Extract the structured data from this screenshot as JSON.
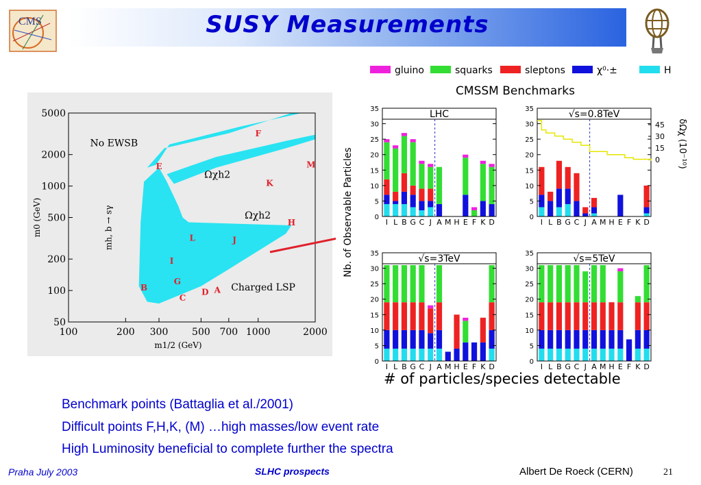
{
  "slide": {
    "title": "SUSY Measurements",
    "bullets": [
      "Benchmark points  (Battaglia et al./2001)",
      "Difficult points F,H,K, (M) …high masses/low event rate",
      "High Luminosity beneficial to complete further the spectra"
    ],
    "caption": "# of particles/species detectable",
    "footer_left": "Praha July 2003",
    "footer_center": "SLHC prospects",
    "footer_right": "Albert De Roeck (CERN)",
    "page_number": "21",
    "cms_logo_text": "CMS",
    "colors": {
      "title": "#0000cc",
      "bullet": "#0000cc",
      "arrow": "#e0202a",
      "band": "#29e3f2"
    }
  },
  "chart_data": [
    {
      "type": "scatter",
      "xscale": "log",
      "yscale": "log",
      "xlabel": "m1/2 (GeV)",
      "ylabel": "m0 (GeV)",
      "xlim": [
        100,
        2000
      ],
      "ylim": [
        50,
        5000
      ],
      "xticks": [
        "100",
        "200",
        "300",
        "500",
        "700",
        "1000",
        "2000"
      ],
      "yticks": [
        "5000",
        "2000",
        "1000",
        "500",
        "200",
        "100",
        "50"
      ],
      "regions": [
        "No EWSB",
        "Ωχh2",
        "Ωχh2",
        "Charged LSP",
        "mh, b → sγ"
      ],
      "points": [
        {
          "label": "A",
          "x": 610,
          "y": 95
        },
        {
          "label": "B",
          "x": 250,
          "y": 100
        },
        {
          "label": "C",
          "x": 400,
          "y": 80
        },
        {
          "label": "D",
          "x": 525,
          "y": 91
        },
        {
          "label": "E",
          "x": 300,
          "y": 1450
        },
        {
          "label": "F",
          "x": 1000,
          "y": 3000
        },
        {
          "label": "G",
          "x": 375,
          "y": 115
        },
        {
          "label": "H",
          "x": 1500,
          "y": 419
        },
        {
          "label": "I",
          "x": 350,
          "y": 180
        },
        {
          "label": "J",
          "x": 750,
          "y": 285
        },
        {
          "label": "K",
          "x": 1150,
          "y": 1000
        },
        {
          "label": "L",
          "x": 450,
          "y": 300
        },
        {
          "label": "M",
          "x": 1900,
          "y": 1500
        }
      ]
    },
    {
      "type": "bar",
      "stacked": true,
      "title": "CMSSM Benchmarks",
      "ylabel": "Nb. of Observable Particles",
      "categories": [
        "I",
        "L",
        "B",
        "G",
        "C",
        "J",
        "A",
        "M",
        "H",
        "E",
        "F",
        "K",
        "D"
      ],
      "ylim": [
        0,
        35
      ],
      "yticks": [
        "0",
        "5",
        "10",
        "15",
        "20",
        "25",
        "30",
        "35"
      ],
      "legend": {
        "placement": "top",
        "items": [
          {
            "name": "gluino",
            "color": "#ee22dd"
          },
          {
            "name": "squarks",
            "color": "#33dd33"
          },
          {
            "name": "sleptons",
            "color": "#ee2222"
          },
          {
            "name": "χ⁰·±",
            "color": "#1111dd"
          },
          {
            "name": "H",
            "color": "#22ddee"
          }
        ]
      },
      "panels": [
        {
          "name": "LHC",
          "series": [
            {
              "name": "H",
              "values": [
                4,
                4,
                4,
                3,
                2,
                3,
                0,
                0,
                0,
                0,
                0,
                0,
                0
              ]
            },
            {
              "name": "χ⁰·±",
              "values": [
                3,
                1,
                4,
                4,
                3,
                2,
                4,
                0,
                0,
                7,
                0,
                5,
                4
              ]
            },
            {
              "name": "sleptons",
              "values": [
                5,
                3,
                6,
                3,
                4,
                4,
                0,
                0,
                0,
                0,
                0,
                0,
                0
              ]
            },
            {
              "name": "squarks",
              "values": [
                12,
                14,
                12,
                14,
                8,
                7,
                12,
                0,
                0,
                12,
                2,
                12,
                12
              ]
            },
            {
              "name": "gluino",
              "values": [
                1,
                1,
                1,
                1,
                1,
                1,
                0,
                0,
                0,
                1,
                1,
                1,
                1
              ]
            }
          ]
        },
        {
          "name": "√s=0.8TeV",
          "right_axis": {
            "label": "δΩχ (10⁻¹⁰)",
            "ticks": [
              "0",
              "15",
              "30",
              "45"
            ]
          },
          "series": [
            {
              "name": "H",
              "values": [
                3,
                0,
                3,
                4,
                0,
                0,
                1,
                0,
                0,
                0,
                0,
                0,
                1
              ]
            },
            {
              "name": "χ⁰·±",
              "values": [
                4,
                5,
                6,
                5,
                5,
                1,
                2,
                0,
                0,
                7,
                0,
                0,
                2
              ]
            },
            {
              "name": "sleptons",
              "values": [
                9,
                3,
                9,
                7,
                9,
                2,
                3,
                0,
                0,
                0,
                0,
                0,
                7
              ]
            },
            {
              "name": "squarks",
              "values": [
                0,
                0,
                0,
                0,
                0,
                0,
                0,
                0,
                0,
                0,
                0,
                0,
                0
              ]
            },
            {
              "name": "gluino",
              "values": [
                0,
                0,
                0,
                0,
                0,
                0,
                0,
                0,
                0,
                0,
                0,
                0,
                0
              ]
            }
          ]
        },
        {
          "name": "√s=3TeV",
          "series": [
            {
              "name": "H",
              "values": [
                4,
                4,
                4,
                4,
                4,
                4,
                4,
                0,
                0,
                0,
                0,
                0,
                4
              ]
            },
            {
              "name": "χ⁰·±",
              "values": [
                6,
                6,
                6,
                6,
                6,
                5,
                6,
                3,
                4,
                6,
                6,
                6,
                6
              ]
            },
            {
              "name": "sleptons",
              "values": [
                9,
                9,
                9,
                9,
                9,
                8,
                9,
                0,
                11,
                0,
                0,
                8,
                9
              ]
            },
            {
              "name": "squarks",
              "values": [
                12,
                12,
                12,
                12,
                12,
                0,
                12,
                0,
                0,
                7,
                0,
                0,
                12
              ]
            },
            {
              "name": "gluino",
              "values": [
                0,
                0,
                0,
                0,
                0,
                1,
                0,
                0,
                0,
                1,
                0,
                0,
                0
              ]
            }
          ]
        },
        {
          "name": "√s=5TeV",
          "series": [
            {
              "name": "H",
              "values": [
                4,
                4,
                4,
                4,
                4,
                4,
                4,
                4,
                4,
                4,
                0,
                4,
                4
              ]
            },
            {
              "name": "χ⁰·±",
              "values": [
                6,
                6,
                6,
                6,
                6,
                6,
                6,
                6,
                6,
                6,
                7,
                6,
                6
              ]
            },
            {
              "name": "sleptons",
              "values": [
                9,
                9,
                9,
                9,
                9,
                9,
                9,
                9,
                9,
                9,
                0,
                9,
                9
              ]
            },
            {
              "name": "squarks",
              "values": [
                12,
                12,
                12,
                12,
                12,
                10,
                12,
                12,
                0,
                10,
                0,
                2,
                12
              ]
            },
            {
              "name": "gluino",
              "values": [
                0,
                0,
                0,
                0,
                0,
                0,
                0,
                0,
                0,
                1,
                0,
                0,
                0
              ]
            }
          ]
        }
      ]
    }
  ]
}
